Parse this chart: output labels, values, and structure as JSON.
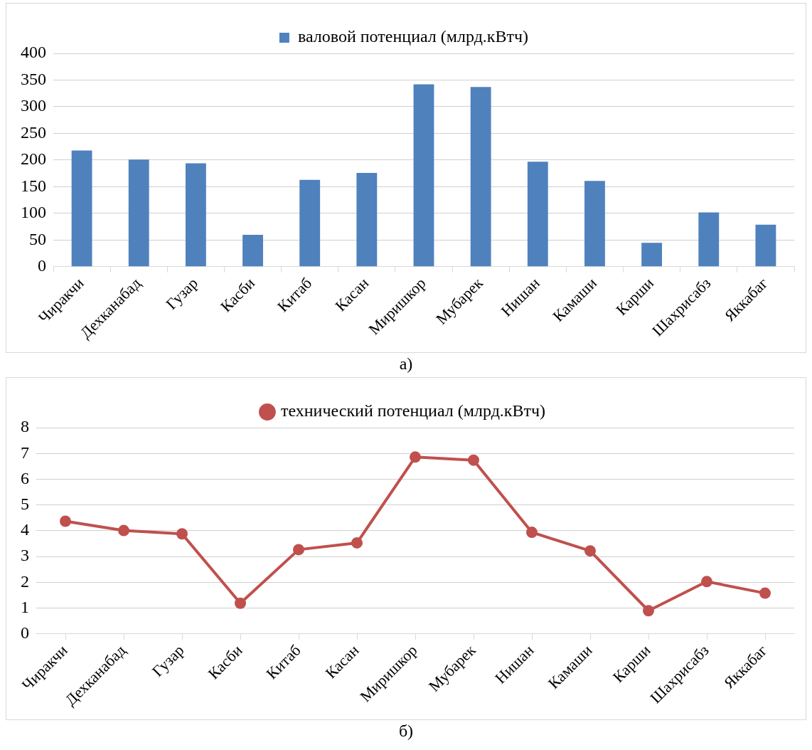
{
  "chart_data": [
    {
      "type": "bar",
      "categories": [
        "Чиракчи",
        "Дехканабад",
        "Гузар",
        "Касби",
        "Китаб",
        "Касан",
        "Миришкор",
        "Мубарек",
        "Нишан",
        "Камаши",
        "Карши",
        "Шахрисабз",
        "Яккабаг"
      ],
      "series": [
        {
          "name": "валовой потенциал (млрд.кВтч)",
          "color": "#4f81bd",
          "values": [
            218,
            201,
            194,
            60,
            163,
            176,
            342,
            337,
            197,
            161,
            45,
            102,
            79
          ]
        }
      ],
      "ylim": [
        0,
        400
      ],
      "yticks": [
        0,
        50,
        100,
        150,
        200,
        250,
        300,
        350,
        400
      ],
      "grid": "y",
      "legend": "top",
      "annotations": [
        "а)"
      ]
    },
    {
      "type": "line",
      "categories": [
        "Чиракчи",
        "Дехканабад",
        "Гузар",
        "Касби",
        "Китаб",
        "Касан",
        "Миришкор",
        "Мубарек",
        "Нишан",
        "Камаши",
        "Карши",
        "Шахрисабз",
        "Яккабаг"
      ],
      "series": [
        {
          "name": "технический потенциал (млрд.кВтч)",
          "color": "#c0504d",
          "values": [
            4.37,
            4.01,
            3.88,
            1.19,
            3.27,
            3.53,
            6.86,
            6.74,
            3.94,
            3.22,
            0.9,
            2.03,
            1.58
          ]
        }
      ],
      "ylim": [
        0,
        8
      ],
      "yticks": [
        0,
        1,
        2,
        3,
        4,
        5,
        6,
        7,
        8
      ],
      "grid": "y",
      "legend": "top",
      "marker": "circle",
      "line_style": "solid",
      "annotations": [
        "б)"
      ]
    }
  ]
}
